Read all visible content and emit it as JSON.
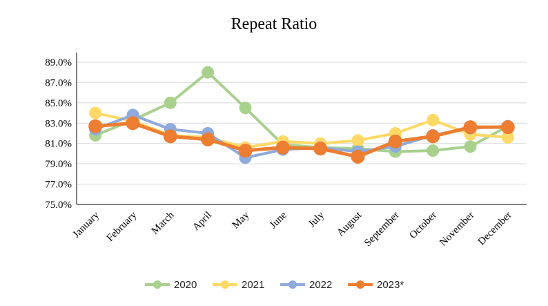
{
  "chart_data": {
    "type": "line",
    "title": "Repeat Ratio",
    "xlabel": "",
    "ylabel": "",
    "categories": [
      "January",
      "February",
      "March",
      "April",
      "May",
      "June",
      "July",
      "August",
      "September",
      "October",
      "November",
      "December"
    ],
    "ylim": [
      75.0,
      89.0
    ],
    "yticks": [
      "75.0%",
      "77.0%",
      "79.0%",
      "81.0%",
      "83.0%",
      "85.0%",
      "87.0%",
      "89.0%"
    ],
    "grid": true,
    "legend_position": "bottom",
    "series": [
      {
        "name": "2020",
        "color": "#a9d18e",
        "values": [
          81.8,
          83.3,
          85.0,
          88.0,
          84.5,
          80.9,
          80.6,
          80.5,
          80.2,
          80.3,
          80.7,
          82.7
        ]
      },
      {
        "name": "2021",
        "color": "#ffd966",
        "values": [
          84.0,
          83.2,
          81.8,
          81.6,
          80.6,
          81.2,
          81.0,
          81.3,
          82.0,
          83.3,
          81.9,
          81.6
        ]
      },
      {
        "name": "2022",
        "color": "#8faadc",
        "values": [
          82.4,
          83.8,
          82.4,
          82.0,
          79.6,
          80.4,
          80.6,
          80.2,
          80.7,
          81.8,
          82.5,
          82.7
        ]
      },
      {
        "name": "2023*",
        "color": "#ed7d31",
        "values": [
          82.7,
          83.0,
          81.7,
          81.4,
          80.3,
          80.6,
          80.5,
          79.7,
          81.2,
          81.7,
          82.6,
          82.6
        ]
      }
    ]
  }
}
